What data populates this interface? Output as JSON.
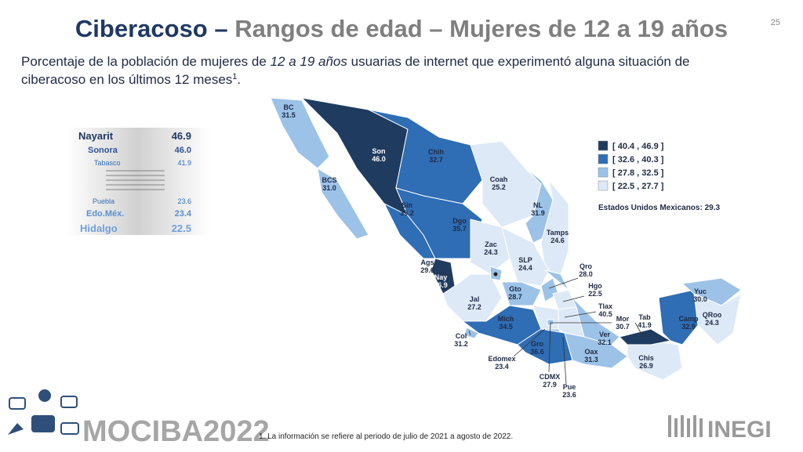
{
  "page_number": "25",
  "title": {
    "lead": "Ciberacoso –",
    "rest": "Rangos de edad – Mujeres de 12 a 19 años"
  },
  "subtitle": {
    "part1": "Porcentaje de la población de mujeres de",
    "italic": "12 a 19 años",
    "part2": "usuarias de internet que experimentó alguna situación de",
    "line2": "ciberacoso en los últimos 12 meses",
    "sup": "1",
    "end": "."
  },
  "ranking": [
    {
      "name": "Nayarit",
      "value": "46.9"
    },
    {
      "name": "Sonora",
      "value": "46.0"
    },
    {
      "name": "Tabasco",
      "value": "41.9"
    },
    {
      "name": "Puebla",
      "value": "23.6"
    },
    {
      "name": "Edo.Méx.",
      "value": "23.4"
    },
    {
      "name": "Hidalgo",
      "value": "22.5"
    }
  ],
  "legend": [
    {
      "label": "[ 40.4 , 46.9 ]",
      "color": "#1f3b60"
    },
    {
      "label": "[ 32.6 , 40.3 ]",
      "color": "#2f6db5"
    },
    {
      "label": "[ 27.8 , 32.5 ]",
      "color": "#9cc2e8"
    },
    {
      "label": "[ 22.5 , 27.7 ]",
      "color": "#dde9f6"
    }
  ],
  "national": {
    "label": "Estados Unidos Mexicanos:",
    "value": "29.3"
  },
  "states": [
    {
      "abbr": "BC",
      "value": "31.5"
    },
    {
      "abbr": "BCS",
      "value": "31.0"
    },
    {
      "abbr": "Son",
      "value": "46.0"
    },
    {
      "abbr": "Chih",
      "value": "32.7"
    },
    {
      "abbr": "Coah",
      "value": "25.2"
    },
    {
      "abbr": "NL",
      "value": "31.9"
    },
    {
      "abbr": "Tamps",
      "value": "24.6"
    },
    {
      "abbr": "Sin",
      "value": "35.2"
    },
    {
      "abbr": "Dgo",
      "value": "35.7"
    },
    {
      "abbr": "Zac",
      "value": "24.3"
    },
    {
      "abbr": "SLP",
      "value": "24.4"
    },
    {
      "abbr": "Ags",
      "value": "29.6"
    },
    {
      "abbr": "Nay",
      "value": "46.9"
    },
    {
      "abbr": "Jal",
      "value": "27.2"
    },
    {
      "abbr": "Qro",
      "value": "28.0"
    },
    {
      "abbr": "Gto",
      "value": "28.7"
    },
    {
      "abbr": "Hgo",
      "value": "22.5"
    },
    {
      "abbr": "Tlax",
      "value": "40.5"
    },
    {
      "abbr": "Mich",
      "value": "34.5"
    },
    {
      "abbr": "Mor",
      "value": "30.7"
    },
    {
      "abbr": "Tab",
      "value": "41.9"
    },
    {
      "abbr": "Camp",
      "value": "32.9"
    },
    {
      "abbr": "Yuc",
      "value": "30.0"
    },
    {
      "abbr": "QRoo",
      "value": "24.3"
    },
    {
      "abbr": "Col",
      "value": "31.2"
    },
    {
      "abbr": "Ver",
      "value": "32.1"
    },
    {
      "abbr": "Gro",
      "value": "36.6"
    },
    {
      "abbr": "Oax",
      "value": "31.3"
    },
    {
      "abbr": "Chis",
      "value": "26.9"
    },
    {
      "abbr": "Edomex",
      "value": "23.4"
    },
    {
      "abbr": "CDMX",
      "value": "27.9"
    },
    {
      "abbr": "Pue",
      "value": "23.6"
    }
  ],
  "footnote": "1. La información se refiere al periodo de julio de 2021 a agosto de 2022.",
  "brand": "MOCIBA2022",
  "logo": "INEGI"
}
